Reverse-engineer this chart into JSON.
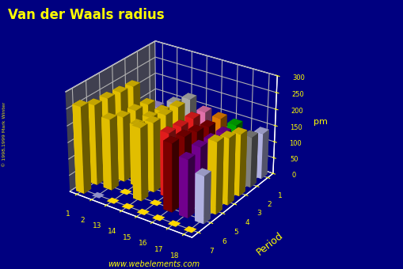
{
  "title": "Van der Waals radius",
  "ylabel": "Period",
  "zlabel": "pm",
  "background_color": "#000080",
  "title_color": "#FFFF00",
  "text_color": "#FFFF00",
  "groups": [
    1,
    2,
    13,
    14,
    15,
    16,
    17,
    18
  ],
  "periods": [
    1,
    2,
    3,
    4,
    5,
    6,
    7
  ],
  "zlim": [
    0,
    300
  ],
  "zticks": [
    0,
    50,
    100,
    150,
    200,
    250,
    300
  ],
  "watermark": "www.webelements.com",
  "copyright": "© 1998,1999 Mark Winter",
  "vdw_data": {
    "1_1": 120,
    "1_18": 140,
    "2_1": 140,
    "2_13": 184,
    "2_14": 210,
    "2_15": 185,
    "2_16": 180,
    "2_17": 175,
    "2_18": 154,
    "3_1": 230,
    "3_2": 189,
    "3_13": 182,
    "3_14": 210,
    "3_15": 190,
    "3_16": 180,
    "3_17": 175,
    "3_18": 188,
    "4_1": 235,
    "4_2": 194,
    "4_13": 187,
    "4_14": 210,
    "4_15": 190,
    "4_16": 190,
    "4_17": 180,
    "4_18": 202,
    "5_1": 240,
    "5_2": 198,
    "5_13": 187,
    "5_14": 211,
    "5_15": 195,
    "5_16": 200,
    "5_17": 185,
    "5_18": 216,
    "6_1": 243,
    "6_2": 215,
    "6_14": 220,
    "6_16": 206,
    "6_17": 175,
    "6_18": 143,
    "7_1": 262
  },
  "bar_colors": {
    "1_1": "#B0A0E8",
    "1_18": "#C8C8FF",
    "2_1": "#A0A0D0",
    "2_13": "#C0C0C0",
    "2_14": "#C0C0C0",
    "2_15": "#FF80C0",
    "2_16": "#FF8C00",
    "2_17": "#00BB00",
    "2_18": "#909090",
    "3_1": "#FFD700",
    "3_2": "#FFD700",
    "3_13": "#FFD700",
    "3_14": "#FFD700",
    "3_15": "#FF2020",
    "3_16": "#8B0000",
    "3_17": "#8000A0",
    "3_18": "#FFD700",
    "4_1": "#FFD700",
    "4_2": "#FFD700",
    "4_13": "#FFD700",
    "4_14": "#FFD700",
    "4_15": "#FF2020",
    "4_16": "#8B0000",
    "4_17": "#8000A0",
    "4_18": "#FFD700",
    "5_1": "#FFD700",
    "5_2": "#FFD700",
    "5_13": "#FFD700",
    "5_14": "#FFD700",
    "5_15": "#FF2020",
    "5_16": "#8B0000",
    "5_17": "#8000A0",
    "5_18": "#FFD700",
    "6_1": "#FFD700",
    "6_2": "#FFD700",
    "6_14": "#FFD700",
    "6_16": "#8B0000",
    "6_17": "#8000A0",
    "6_18": "#C8C8FF",
    "7_1": "#FFD700"
  },
  "floor_dot_color_yellow": "#FFD700",
  "floor_dot_color_blue": "#9090C8",
  "elev": 28,
  "azim": -55
}
